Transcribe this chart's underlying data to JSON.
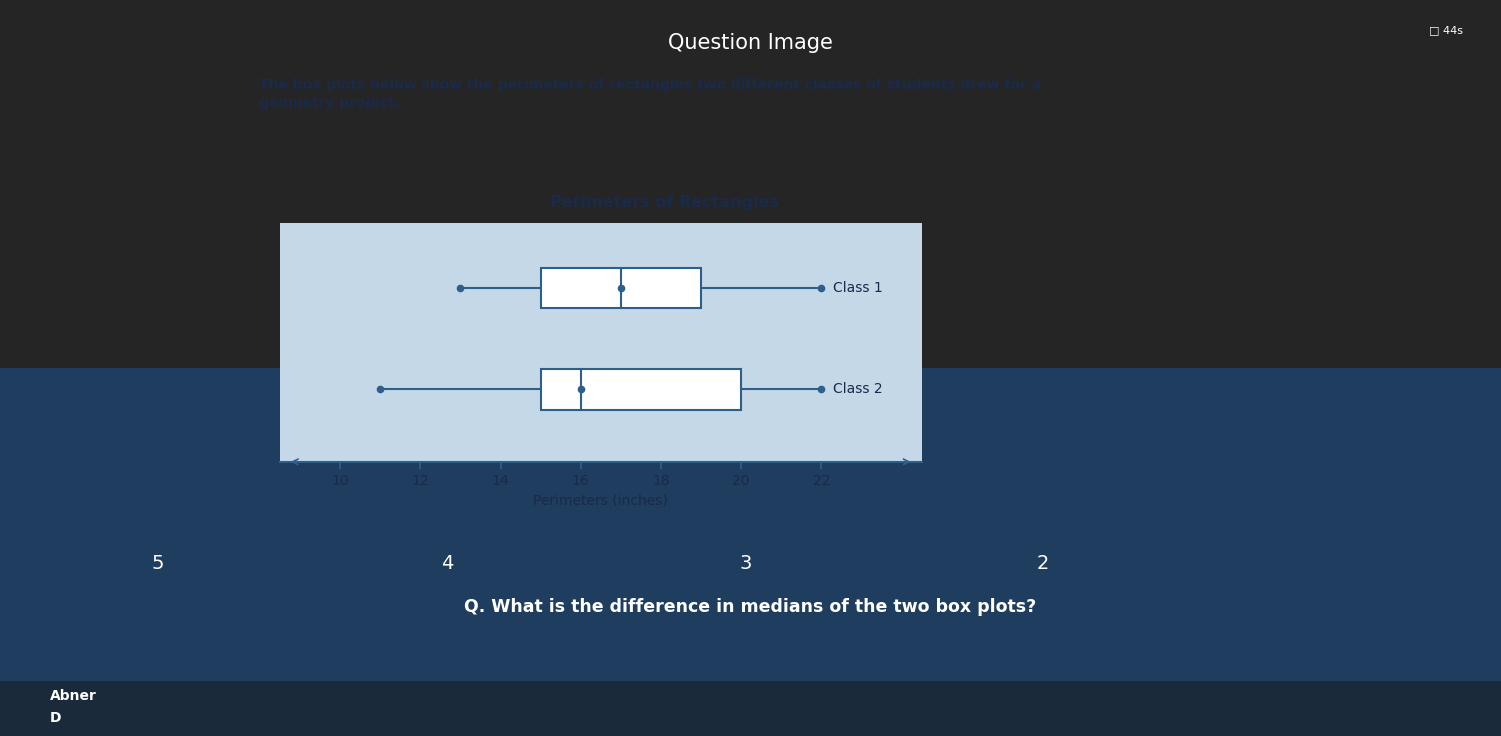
{
  "page_title": "Question Image",
  "description_line1": "The box plots below show the perimeters of rectangles two different classes of students drew for a",
  "description_line2": "geometry project.",
  "chart_title": "Perimeters of Rectangles",
  "xlabel": "Perimeters (inches)",
  "class1": {
    "label": "Class 1",
    "min": 13,
    "q1": 15,
    "median": 17,
    "q3": 19,
    "max": 22
  },
  "class2": {
    "label": "Class 2",
    "min": 11,
    "q1": 15,
    "median": 16,
    "q3": 20,
    "max": 22
  },
  "xlim": [
    8.5,
    24.5
  ],
  "xticks": [
    10,
    12,
    14,
    16,
    18,
    20,
    22
  ],
  "line_color": "#2e5f8a",
  "box_facecolor": "white",
  "chart_bg": "#c5d8e8",
  "card_bg": "#e8e0d8",
  "outer_bg_top": "#2a2a2a",
  "outer_bg_bottom": "#1a3a5c",
  "question": "Q. What is the difference in medians of the two box plots?",
  "figsize": [
    15.01,
    7.36
  ],
  "dpi": 100
}
